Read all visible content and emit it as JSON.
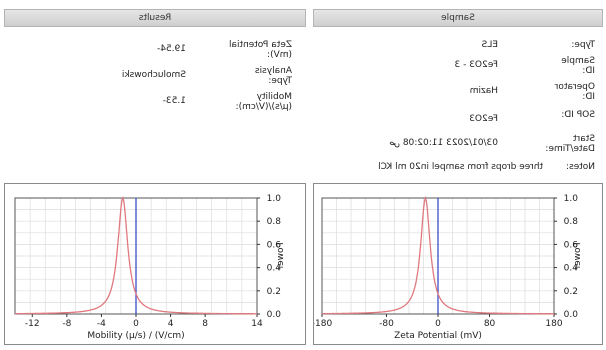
{
  "sample": {
    "header": "Sample",
    "type_label": "Type:",
    "type_value": "ELS",
    "sample_id_label": "Sample ID:",
    "sample_id_value": "Fe2O3 - 3",
    "operator_label": "Operator ID:",
    "operator_value": "Hazim",
    "sop_label": "SOP ID:",
    "sop_value": "Fe2O3",
    "start_label": "Start Date/Time:",
    "start_value": "03/01/2023 11:02:08 ص",
    "notes_label": "Notes:",
    "notes_value": "three drops from sampel in20 ml KCl"
  },
  "results": {
    "header": "Results",
    "zeta_label": "Zeta Potential (mV):",
    "zeta_value": "19.54-",
    "analysis_label": "Analysis Type:",
    "analysis_value": "Smoluchowski",
    "mobility_label": "Mobility (µ/s)/(V/cm):",
    "mobility_value": "1.53-"
  },
  "chart_data": [
    {
      "type": "line",
      "title": "",
      "xlabel": "Zeta Potential (mV)",
      "ylabel": "Power",
      "xlim": [
        180,
        -180
      ],
      "ylim": [
        0,
        1.0
      ],
      "x_ticks": [
        "180",
        "80",
        "0",
        "-80",
        "-180"
      ],
      "x_tick_values": [
        180,
        80,
        0,
        -80,
        -180
      ],
      "y_ticks": [
        "0.0",
        "0.2",
        "0.4",
        "0.6",
        "0.8",
        "1.0"
      ],
      "y_tick_values": [
        0,
        0.2,
        0.4,
        0.6,
        0.8,
        1.0
      ],
      "series": [
        {
          "color": "#e0797f",
          "peak_x": -19.54,
          "peak_y": 1.0,
          "half_width": 9
        }
      ],
      "reference_line": {
        "x": 0,
        "color": "#3b4fc8"
      },
      "grid": true
    },
    {
      "type": "line",
      "title": "",
      "xlabel": "Mobility (µ/s) / (V/cm)",
      "ylabel": "Power",
      "xlim": [
        14,
        -14
      ],
      "ylim": [
        0,
        1.0
      ],
      "x_ticks": [
        "14",
        "8",
        "4",
        "0",
        "-4",
        "-8",
        "-12"
      ],
      "x_tick_values": [
        14,
        8,
        4,
        0,
        -4,
        -8,
        -12
      ],
      "y_ticks": [
        "0.0",
        "0.2",
        "0.4",
        "0.6",
        "0.8",
        "1.0"
      ],
      "y_tick_values": [
        0,
        0.2,
        0.4,
        0.6,
        0.8,
        1.0
      ],
      "series": [
        {
          "color": "#e0797f",
          "peak_x": -1.53,
          "peak_y": 1.0,
          "half_width": 0.7
        }
      ],
      "reference_line": {
        "x": 0,
        "color": "#3b4fc8"
      },
      "grid": true
    }
  ]
}
